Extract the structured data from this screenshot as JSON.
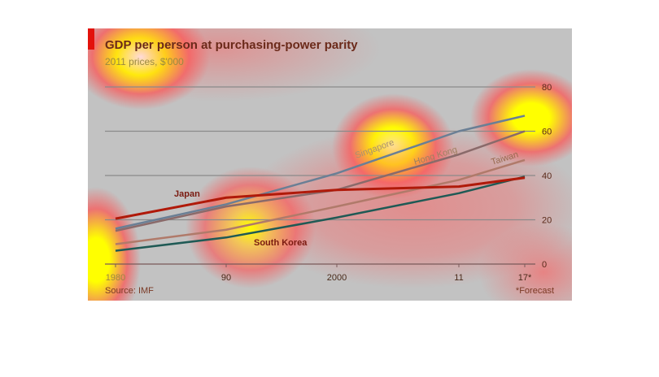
{
  "chart_data": {
    "type": "line",
    "title": "GDP per person at purchasing-power parity",
    "subtitle": "2011 prices, $'000",
    "x": [
      1980,
      1990,
      2000,
      2011,
      2017
    ],
    "x_tick_labels": [
      "1980",
      "90",
      "2000",
      "11",
      "17*"
    ],
    "y_ticks": [
      0,
      20,
      40,
      60,
      80
    ],
    "ylim": [
      0,
      80
    ],
    "grid": true,
    "y_axis_side": "right",
    "series": [
      {
        "name": "Singapore",
        "color": "#6a7f95",
        "values": [
          16,
          27,
          41,
          60,
          67
        ]
      },
      {
        "name": "Hong Kong",
        "color": "#8a6a6a",
        "values": [
          15,
          26,
          33.5,
          49.5,
          60
        ]
      },
      {
        "name": "Taiwan",
        "color": "#b07a6a",
        "values": [
          9,
          15.5,
          26,
          38,
          47
        ]
      },
      {
        "name": "South Korea",
        "color": "#1f5a55",
        "values": [
          6,
          12,
          21,
          32,
          39.5
        ]
      },
      {
        "name": "Japan",
        "color": "#b01a0a",
        "values": [
          20.5,
          30,
          33.5,
          35,
          39
        ]
      }
    ],
    "source": "Source: IMF",
    "note": "*Forecast"
  }
}
